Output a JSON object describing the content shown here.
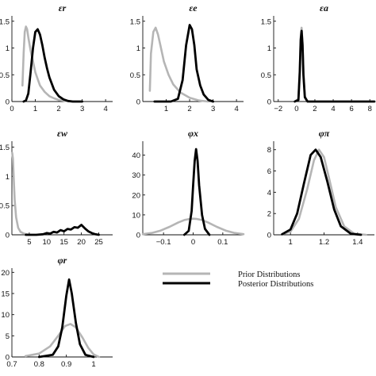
{
  "legend": {
    "prior_label": "Prior Distributions",
    "posterior_label": "Posterior Distributions"
  },
  "colors": {
    "prior": "#b5b5b5",
    "posterior": "#000000",
    "axis": "#111111"
  },
  "chart_data": [
    {
      "type": "line",
      "title": "εr",
      "xlim": [
        0,
        4.3
      ],
      "ylim": [
        0,
        1.6
      ],
      "xticks": [
        "0",
        "1",
        "2",
        "3",
        "4"
      ],
      "xtick_values": [
        0,
        1,
        2,
        3,
        4
      ],
      "yticks": [
        "0",
        "0.5",
        "1",
        "1.5"
      ],
      "ytick_values": [
        0,
        0.5,
        1,
        1.5
      ],
      "series": [
        {
          "role": "prior",
          "x": [
            0.45,
            0.5,
            0.55,
            0.6,
            0.65,
            0.7,
            0.8,
            0.9,
            1.0,
            1.1,
            1.2,
            1.4,
            1.6,
            1.8,
            2.0,
            2.3,
            2.6,
            3.0
          ],
          "y": [
            0.3,
            0.9,
            1.3,
            1.4,
            1.35,
            1.2,
            0.95,
            0.75,
            0.55,
            0.42,
            0.3,
            0.18,
            0.1,
            0.06,
            0.03,
            0.01,
            0.0,
            0.0
          ]
        },
        {
          "role": "posterior",
          "x": [
            0.5,
            0.6,
            0.7,
            0.8,
            0.9,
            1.0,
            1.1,
            1.2,
            1.3,
            1.4,
            1.5,
            1.6,
            1.8,
            2.0,
            2.2,
            2.4,
            2.6,
            3.0
          ],
          "y": [
            0.0,
            0.02,
            0.15,
            0.55,
            1.0,
            1.3,
            1.35,
            1.25,
            1.05,
            0.82,
            0.62,
            0.45,
            0.22,
            0.1,
            0.04,
            0.01,
            0.0,
            0.0
          ]
        }
      ]
    },
    {
      "type": "line",
      "title": "εe",
      "xlim": [
        0,
        4.3
      ],
      "ylim": [
        0,
        1.6
      ],
      "xticks": [
        "1",
        "2",
        "3",
        "4"
      ],
      "xtick_values": [
        1,
        2,
        3,
        4
      ],
      "yticks": [
        "0",
        "0.5",
        "1",
        "1.5"
      ],
      "ytick_values": [
        0,
        0.5,
        1,
        1.5
      ],
      "series": [
        {
          "role": "prior",
          "x": [
            0.3,
            0.35,
            0.45,
            0.55,
            0.65,
            0.75,
            0.9,
            1.1,
            1.3,
            1.6,
            2.0,
            2.4,
            2.8
          ],
          "y": [
            0.2,
            0.9,
            1.3,
            1.38,
            1.25,
            1.05,
            0.75,
            0.5,
            0.32,
            0.17,
            0.07,
            0.02,
            0.0
          ]
        },
        {
          "role": "posterior",
          "x": [
            0.5,
            1.2,
            1.5,
            1.7,
            1.85,
            2.0,
            2.1,
            2.2,
            2.3,
            2.45,
            2.6,
            2.8,
            3.0
          ],
          "y": [
            0.0,
            0.0,
            0.05,
            0.4,
            1.05,
            1.43,
            1.35,
            1.05,
            0.6,
            0.3,
            0.13,
            0.03,
            0.0
          ]
        }
      ]
    },
    {
      "type": "line",
      "title": "εa",
      "xlim": [
        -2.5,
        8.5
      ],
      "ylim": [
        0,
        1.6
      ],
      "xticks": [
        "−2",
        "0",
        "2",
        "4",
        "6",
        "8"
      ],
      "xtick_values": [
        -2,
        0,
        2,
        4,
        6,
        8
      ],
      "yticks": [
        "0",
        "0.5",
        "1",
        "1.5"
      ],
      "ytick_values": [
        0,
        0.5,
        1,
        1.5
      ],
      "series": [
        {
          "role": "prior",
          "x": [
            -0.2,
            0.2,
            0.35,
            0.45,
            0.55,
            0.65,
            0.75,
            0.9,
            1.2
          ],
          "y": [
            0.0,
            0.05,
            0.6,
            1.2,
            1.38,
            1.1,
            0.55,
            0.1,
            0.0
          ]
        },
        {
          "role": "posterior",
          "x": [
            -0.2,
            0.2,
            0.35,
            0.45,
            0.55,
            0.65,
            0.75,
            0.9,
            1.2,
            8.5
          ],
          "y": [
            0.0,
            0.03,
            0.55,
            1.15,
            1.32,
            1.05,
            0.5,
            0.08,
            0.0,
            0.0
          ]
        }
      ]
    },
    {
      "type": "line",
      "title": "εw",
      "xlim": [
        0,
        29
      ],
      "ylim": [
        0,
        1.6
      ],
      "xticks": [
        "5",
        "10",
        "15",
        "20",
        "25"
      ],
      "xtick_values": [
        5,
        10,
        15,
        20,
        25
      ],
      "yticks": [
        "0",
        "0.5",
        "1",
        "1.5"
      ],
      "ytick_values": [
        0,
        0.5,
        1,
        1.5
      ],
      "series": [
        {
          "role": "prior",
          "x": [
            0.1,
            0.3,
            0.5,
            0.8,
            1.2,
            1.8,
            2.5,
            3.5,
            5.0
          ],
          "y": [
            1.4,
            1.3,
            1.0,
            0.6,
            0.3,
            0.12,
            0.05,
            0.02,
            0.0
          ]
        },
        {
          "role": "posterior",
          "x": [
            4,
            7,
            9,
            10,
            11,
            12,
            13,
            14,
            15,
            16,
            17,
            18,
            19,
            20,
            21,
            22,
            23,
            24,
            25
          ],
          "y": [
            0.0,
            0.0,
            0.01,
            0.03,
            0.02,
            0.05,
            0.04,
            0.08,
            0.06,
            0.1,
            0.09,
            0.13,
            0.12,
            0.17,
            0.11,
            0.06,
            0.03,
            0.01,
            0.0
          ]
        }
      ]
    },
    {
      "type": "line",
      "title": "φx",
      "xlim": [
        -0.17,
        0.17
      ],
      "ylim": [
        0,
        47
      ],
      "xticks": [
        "−0.1",
        "0",
        "0.1"
      ],
      "xtick_values": [
        -0.1,
        0,
        0.1
      ],
      "yticks": [
        "0",
        "10",
        "20",
        "30",
        "40"
      ],
      "ytick_values": [
        0,
        10,
        20,
        30,
        40
      ],
      "series": [
        {
          "role": "prior",
          "x": [
            -0.17,
            -0.14,
            -0.11,
            -0.08,
            -0.05,
            -0.03,
            -0.01,
            0.0,
            0.01,
            0.03,
            0.05,
            0.08,
            0.11,
            0.14,
            0.17
          ],
          "y": [
            0.3,
            0.9,
            2.1,
            4.0,
            6.2,
            7.4,
            8.0,
            8.1,
            8.0,
            7.4,
            6.2,
            4.0,
            2.1,
            0.9,
            0.3
          ]
        },
        {
          "role": "posterior",
          "x": [
            -0.03,
            -0.015,
            -0.005,
            0.0,
            0.005,
            0.01,
            0.015,
            0.02,
            0.03,
            0.04,
            0.055
          ],
          "y": [
            0.0,
            2.0,
            12.0,
            25.0,
            37.0,
            43.0,
            37.0,
            25.0,
            10.0,
            3.0,
            0.0
          ]
        }
      ]
    },
    {
      "type": "line",
      "title": "φπ",
      "xlim": [
        0.9,
        1.5
      ],
      "ylim": [
        0,
        8.8
      ],
      "xticks": [
        "1",
        "1.2",
        "1.4"
      ],
      "xtick_values": [
        1.0,
        1.2,
        1.4
      ],
      "yticks": [
        "0",
        "2",
        "4",
        "6",
        "8"
      ],
      "ytick_values": [
        0,
        2,
        4,
        6,
        8
      ],
      "series": [
        {
          "role": "prior",
          "x": [
            0.95,
            1.0,
            1.05,
            1.1,
            1.14,
            1.17,
            1.2,
            1.23,
            1.27,
            1.32,
            1.38,
            1.45
          ],
          "y": [
            0.05,
            0.3,
            1.5,
            4.3,
            7.0,
            8.0,
            7.3,
            5.3,
            2.6,
            0.8,
            0.1,
            0.0
          ]
        },
        {
          "role": "posterior",
          "x": [
            0.95,
            1.0,
            1.04,
            1.08,
            1.12,
            1.15,
            1.18,
            1.22,
            1.26,
            1.3,
            1.36,
            1.42
          ],
          "y": [
            0.05,
            0.5,
            2.0,
            4.8,
            7.5,
            8.0,
            7.3,
            5.0,
            2.4,
            0.8,
            0.1,
            0.0
          ]
        }
      ]
    },
    {
      "type": "line",
      "title": "φr",
      "xlim": [
        0.7,
        1.07
      ],
      "ylim": [
        0,
        21
      ],
      "xticks": [
        "0.7",
        "0.8",
        "0.9",
        "1"
      ],
      "xtick_values": [
        0.7,
        0.8,
        0.9,
        1.0
      ],
      "yticks": [
        "0",
        "5",
        "10",
        "15",
        "20"
      ],
      "ytick_values": [
        0,
        5,
        10,
        15,
        20
      ],
      "series": [
        {
          "role": "prior",
          "x": [
            0.75,
            0.8,
            0.84,
            0.87,
            0.895,
            0.915,
            0.935,
            0.96,
            0.98,
            1.0,
            1.02
          ],
          "y": [
            0.2,
            0.8,
            2.5,
            5.0,
            7.3,
            7.8,
            7.0,
            4.5,
            2.2,
            0.6,
            0.0
          ]
        },
        {
          "role": "posterior",
          "x": [
            0.8,
            0.85,
            0.87,
            0.885,
            0.9,
            0.91,
            0.92,
            0.935,
            0.95,
            0.97,
            1.0
          ],
          "y": [
            0.0,
            0.5,
            2.5,
            7.0,
            14.5,
            18.3,
            15.0,
            8.0,
            3.0,
            0.5,
            0.0
          ]
        }
      ]
    }
  ]
}
